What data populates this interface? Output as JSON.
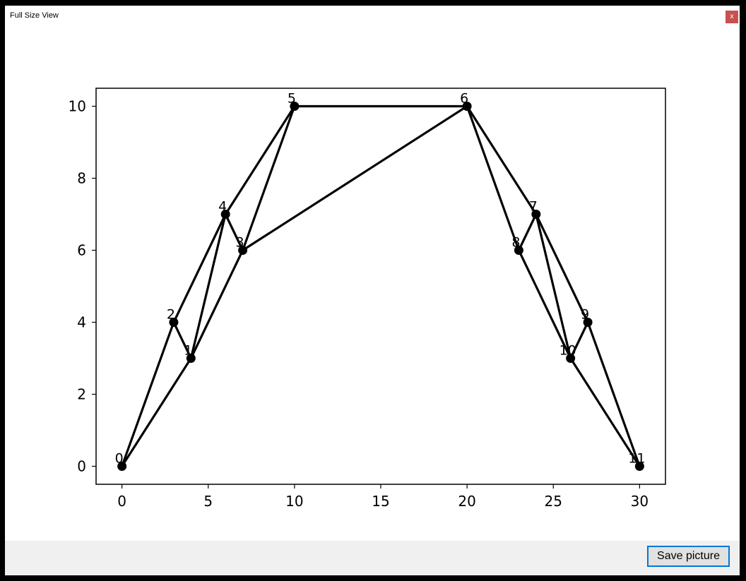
{
  "window": {
    "title": "Full Size View",
    "close_label": "x"
  },
  "footer": {
    "save_label": "Save picture"
  },
  "chart_data": {
    "type": "network",
    "xlim": [
      -1.5,
      31.5
    ],
    "ylim": [
      -0.5,
      10.5
    ],
    "xticks": [
      0,
      5,
      10,
      15,
      20,
      25,
      30
    ],
    "yticks": [
      0,
      2,
      4,
      6,
      8,
      10
    ],
    "grid": false,
    "nodes": [
      {
        "id": "0",
        "x": 0,
        "y": 0
      },
      {
        "id": "1",
        "x": 4,
        "y": 3
      },
      {
        "id": "2",
        "x": 3,
        "y": 4
      },
      {
        "id": "3",
        "x": 7,
        "y": 6
      },
      {
        "id": "4",
        "x": 6,
        "y": 7
      },
      {
        "id": "5",
        "x": 10,
        "y": 10
      },
      {
        "id": "6",
        "x": 20,
        "y": 10
      },
      {
        "id": "7",
        "x": 24,
        "y": 7
      },
      {
        "id": "8",
        "x": 23,
        "y": 6
      },
      {
        "id": "9",
        "x": 27,
        "y": 4
      },
      {
        "id": "10",
        "x": 26,
        "y": 3
      },
      {
        "id": "11",
        "x": 30,
        "y": 0
      }
    ],
    "edges": [
      [
        0,
        1
      ],
      [
        0,
        2
      ],
      [
        1,
        2
      ],
      [
        1,
        3
      ],
      [
        1,
        4
      ],
      [
        2,
        4
      ],
      [
        3,
        4
      ],
      [
        3,
        5
      ],
      [
        4,
        5
      ],
      [
        5,
        6
      ],
      [
        3,
        6
      ],
      [
        6,
        7
      ],
      [
        6,
        8
      ],
      [
        7,
        8
      ],
      [
        7,
        9
      ],
      [
        7,
        10
      ],
      [
        8,
        10
      ],
      [
        9,
        10
      ],
      [
        9,
        11
      ],
      [
        10,
        11
      ]
    ]
  }
}
